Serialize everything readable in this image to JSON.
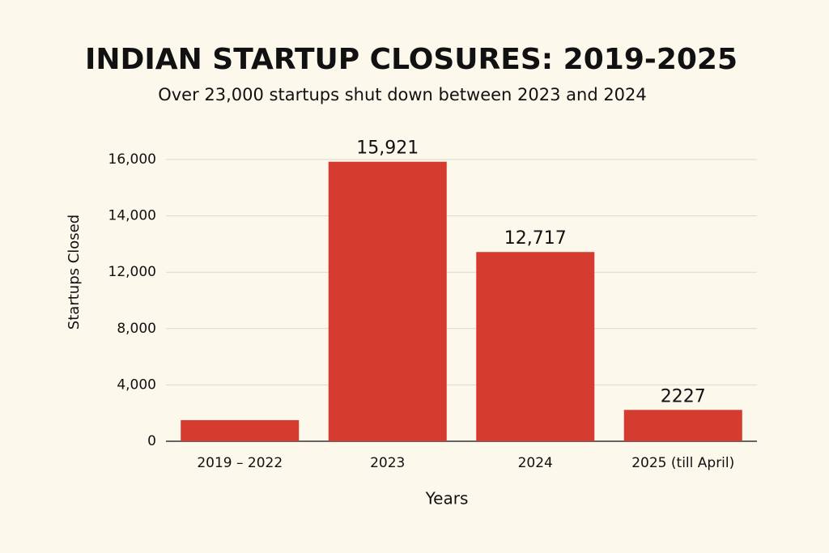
{
  "chart_data": {
    "type": "bar",
    "title": "INDIAN STARTUP CLOSURES: 2019-2025",
    "subtitle": "Over 23,000 startups shut down between 2023 and 2024",
    "x_label": "Years",
    "y_label": "Startups Closed",
    "categories": [
      "2019 – 2022",
      "2023",
      "2024",
      "2025 (till April)"
    ],
    "values": [
      1500,
      15921,
      12717,
      2227
    ],
    "value_labels": [
      null,
      "15,921",
      "12,717",
      "2227"
    ],
    "color": "#d63b2f",
    "ylim": [
      0,
      16000
    ],
    "yticks": [
      0,
      {
        "value": 4000,
        "label": "4,000"
      },
      {
        "value": 8000,
        "label": "8,000"
      },
      {
        "value": 12000,
        "label": "12,000"
      },
      {
        "value": 14000,
        "label": "14,000"
      },
      {
        "value": 16000,
        "label": "16,000"
      }
    ],
    "grid": true
  }
}
